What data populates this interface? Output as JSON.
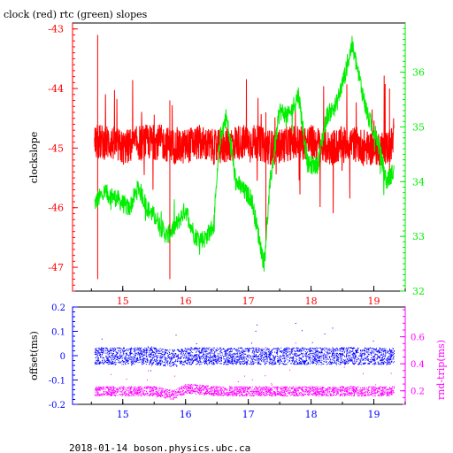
{
  "title": "clock (red) rtc (green) slopes",
  "footer": "2018-01-14 boson.physics.ubc.ca",
  "colors": {
    "clock": "#ff0000",
    "rtc": "#00ee00",
    "offset": "#0000ff",
    "rndtrip": "#ff00ff",
    "axis": "#000000"
  },
  "chart_data": [
    {
      "type": "line",
      "title": "clock (red) rtc (green) slopes",
      "ylabel": "clockslope",
      "x_ticks": [
        "15",
        "16",
        "17",
        "18",
        "19"
      ],
      "xlim": [
        14.2,
        19.5
      ],
      "ylim_left": [
        -47.4,
        -42.9
      ],
      "yticks_left": [
        "-43",
        "-44",
        "-45",
        "-46",
        "-47"
      ],
      "ylim_right": [
        32,
        36.9
      ],
      "yticks_right": [
        "32",
        "33",
        "34",
        "35",
        "36"
      ],
      "grid": false,
      "series": [
        {
          "name": "clock",
          "axis": "left",
          "x": [
            14.55,
            14.8,
            15.0,
            15.3,
            15.6,
            15.9,
            16.2,
            16.5,
            16.8,
            17.1,
            17.4,
            17.7,
            18.0,
            18.3,
            18.6,
            18.9,
            19.2,
            19.32
          ],
          "values": [
            -44.9,
            -44.9,
            -45.0,
            -44.9,
            -44.9,
            -45.0,
            -44.9,
            -45.0,
            -44.9,
            -44.9,
            -45.0,
            -44.9,
            -44.9,
            -45.0,
            -44.9,
            -45.0,
            -45.0,
            -44.9
          ]
        },
        {
          "name": "rtc",
          "axis": "right",
          "x": [
            14.55,
            14.7,
            14.9,
            15.1,
            15.25,
            15.4,
            15.55,
            15.7,
            15.85,
            16.0,
            16.15,
            16.3,
            16.45,
            16.55,
            16.65,
            16.8,
            16.95,
            17.05,
            17.15,
            17.25,
            17.35,
            17.5,
            17.65,
            17.8,
            17.95,
            18.1,
            18.25,
            18.4,
            18.55,
            18.65,
            18.75,
            18.9,
            19.05,
            19.2,
            19.32
          ],
          "values": [
            33.6,
            33.8,
            33.7,
            33.5,
            33.9,
            33.5,
            33.3,
            33.0,
            33.2,
            33.5,
            33.0,
            32.95,
            33.2,
            34.8,
            35.2,
            34.0,
            33.8,
            33.7,
            33.1,
            32.5,
            34.0,
            35.3,
            35.2,
            35.6,
            34.3,
            34.3,
            35.2,
            35.4,
            36.0,
            36.5,
            36.0,
            35.2,
            34.8,
            34.0,
            34.2
          ]
        }
      ]
    },
    {
      "type": "scatter",
      "ylabel_left": "offset(ms)",
      "ylabel_right": "rnd-trip(ms)",
      "x_ticks": [
        "15",
        "16",
        "17",
        "18",
        "19"
      ],
      "xlim": [
        14.2,
        19.5
      ],
      "ylim_left": [
        -0.2,
        0.2
      ],
      "yticks_left": [
        "0.2",
        "0.1",
        "0",
        "-0.1",
        "-0.2"
      ],
      "ylim_right": [
        0.1,
        0.82
      ],
      "yticks_right": [
        "0.6",
        "0.4",
        "0.2"
      ],
      "series": [
        {
          "name": "offset",
          "axis": "left",
          "x": [
            14.55,
            15.0,
            15.5,
            15.8,
            16.0,
            16.5,
            17.0,
            17.5,
            18.0,
            18.5,
            19.0,
            19.32
          ],
          "values": [
            0.0,
            0.0,
            0.0,
            -0.01,
            0.0,
            0.0,
            0.0,
            0.0,
            0.0,
            0.0,
            0.0,
            0.0
          ]
        },
        {
          "name": "rnd-trip",
          "axis": "right",
          "x": [
            14.55,
            15.0,
            15.5,
            15.8,
            16.0,
            16.5,
            17.0,
            17.5,
            18.0,
            18.5,
            19.0,
            19.32
          ],
          "values": [
            0.2,
            0.2,
            0.2,
            0.17,
            0.22,
            0.2,
            0.2,
            0.2,
            0.2,
            0.2,
            0.2,
            0.2
          ]
        }
      ]
    }
  ]
}
